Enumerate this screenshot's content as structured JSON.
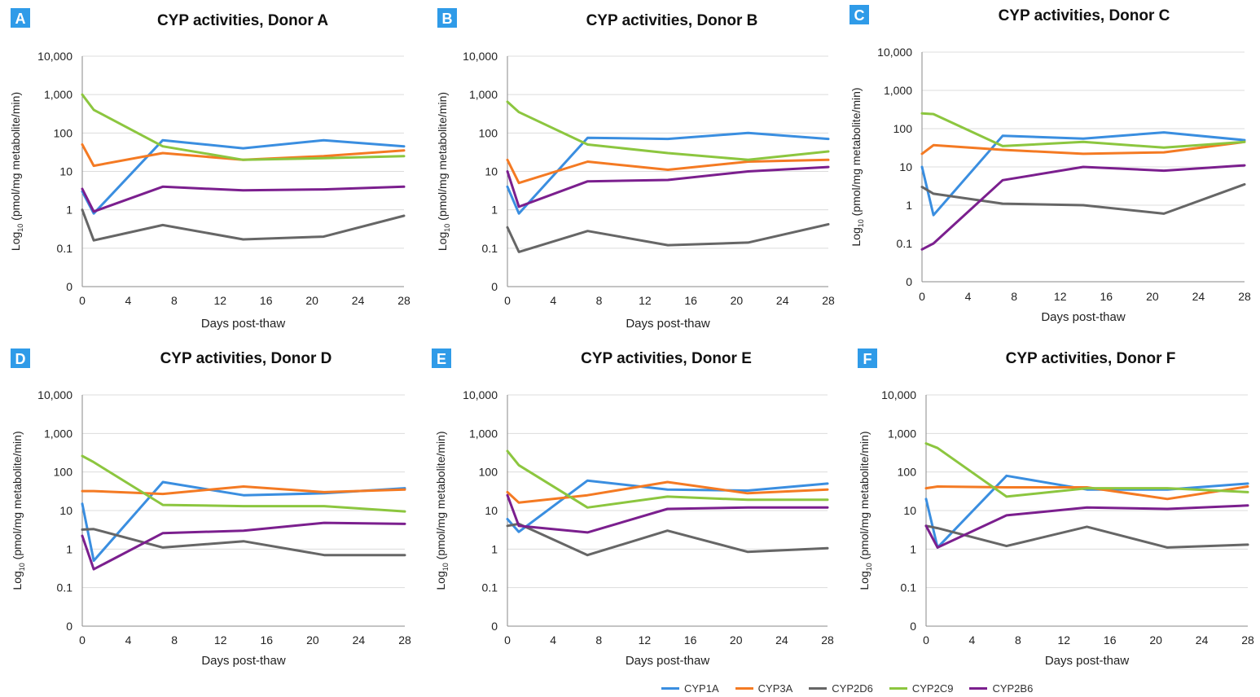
{
  "chart_data": [
    {
      "type": "line",
      "panel": "A",
      "title": "CYP activities, Donor A",
      "xlabel": "Days post-thaw",
      "ylabel": "Log10 (pmol/mg metabolite/min)",
      "log_y": true,
      "ylim": [
        0.01,
        10000
      ],
      "xlim": [
        0,
        28
      ],
      "x_ticks": [
        0,
        4,
        8,
        12,
        16,
        20,
        24,
        28
      ],
      "y_ticks": [
        {
          "v": 0.01,
          "label": "0"
        },
        {
          "v": 0.1,
          "label": "0.1"
        },
        {
          "v": 1,
          "label": "1"
        },
        {
          "v": 10,
          "label": "10"
        },
        {
          "v": 100,
          "label": "100"
        },
        {
          "v": 1000,
          "label": "1,000"
        },
        {
          "v": 10000,
          "label": "10,000"
        }
      ],
      "x": [
        0,
        1,
        7,
        14,
        21,
        28
      ],
      "series": [
        {
          "name": "CYP1A",
          "values": [
            3,
            0.8,
            65,
            40,
            65,
            45
          ]
        },
        {
          "name": "CYP3A",
          "values": [
            50,
            14,
            30,
            20,
            25,
            35
          ]
        },
        {
          "name": "CYP2D6",
          "values": [
            1,
            0.16,
            0.4,
            0.17,
            0.2,
            0.7
          ]
        },
        {
          "name": "CYP2C9",
          "values": [
            1000,
            400,
            45,
            20,
            22,
            25
          ]
        },
        {
          "name": "CYP2B6",
          "values": [
            3.5,
            0.9,
            4,
            3.2,
            3.4,
            4
          ]
        }
      ]
    },
    {
      "type": "line",
      "panel": "B",
      "title": "CYP activities, Donor B",
      "xlabel": "Days post-thaw",
      "ylabel": "Log10 (pmol/mg metabolite/min)",
      "log_y": true,
      "ylim": [
        0.01,
        10000
      ],
      "xlim": [
        0,
        28
      ],
      "x_ticks": [
        0,
        4,
        8,
        12,
        16,
        20,
        24,
        28
      ],
      "y_ticks": [
        {
          "v": 0.01,
          "label": "0"
        },
        {
          "v": 0.1,
          "label": "0.1"
        },
        {
          "v": 1,
          "label": "1"
        },
        {
          "v": 10,
          "label": "10"
        },
        {
          "v": 100,
          "label": "100"
        },
        {
          "v": 1000,
          "label": "1,000"
        },
        {
          "v": 10000,
          "label": "10,000"
        }
      ],
      "x": [
        0,
        1,
        7,
        14,
        21,
        28
      ],
      "series": [
        {
          "name": "CYP1A",
          "values": [
            4,
            0.8,
            75,
            70,
            100,
            70
          ]
        },
        {
          "name": "CYP3A",
          "values": [
            20,
            5,
            18,
            11,
            18,
            20
          ]
        },
        {
          "name": "CYP2D6",
          "values": [
            0.35,
            0.08,
            0.28,
            0.12,
            0.14,
            0.42
          ]
        },
        {
          "name": "CYP2C9",
          "values": [
            650,
            350,
            50,
            30,
            20,
            33
          ]
        },
        {
          "name": "CYP2B6",
          "values": [
            10,
            1.2,
            5.5,
            6,
            10,
            13
          ]
        }
      ]
    },
    {
      "type": "line",
      "panel": "C",
      "title": "CYP activities, Donor C",
      "xlabel": "Days post-thaw",
      "ylabel": "Log10 (pmol/mg metabolite/min)",
      "log_y": true,
      "ylim": [
        0.01,
        10000
      ],
      "xlim": [
        0,
        28
      ],
      "x_ticks": [
        0,
        4,
        8,
        12,
        16,
        20,
        24,
        28
      ],
      "y_ticks": [
        {
          "v": 0.01,
          "label": "0"
        },
        {
          "v": 0.1,
          "label": "0.1"
        },
        {
          "v": 1,
          "label": "1"
        },
        {
          "v": 10,
          "label": "10"
        },
        {
          "v": 100,
          "label": "100"
        },
        {
          "v": 1000,
          "label": "1,000"
        },
        {
          "v": 10000,
          "label": "10,000"
        }
      ],
      "x": [
        0,
        1,
        7,
        14,
        21,
        28
      ],
      "series": [
        {
          "name": "CYP1A",
          "values": [
            10,
            0.55,
            65,
            55,
            80,
            50
          ]
        },
        {
          "name": "CYP3A",
          "values": [
            22,
            37,
            28,
            22,
            24,
            45
          ]
        },
        {
          "name": "CYP2D6",
          "values": [
            3,
            2,
            1.1,
            1,
            0.6,
            3.5
          ]
        },
        {
          "name": "CYP2C9",
          "values": [
            250,
            240,
            35,
            45,
            32,
            45
          ]
        },
        {
          "name": "CYP2B6",
          "values": [
            0.07,
            0.1,
            4.5,
            10,
            8,
            11
          ]
        }
      ]
    },
    {
      "type": "line",
      "panel": "D",
      "title": "CYP activities, Donor D",
      "xlabel": "Days post-thaw",
      "ylabel": "Log10 (pmol/mg metabolite/min)",
      "log_y": true,
      "ylim": [
        0.01,
        10000
      ],
      "xlim": [
        0,
        28
      ],
      "x_ticks": [
        0,
        4,
        8,
        12,
        16,
        20,
        24,
        28
      ],
      "y_ticks": [
        {
          "v": 0.01,
          "label": "0"
        },
        {
          "v": 0.1,
          "label": "0.1"
        },
        {
          "v": 1,
          "label": "1"
        },
        {
          "v": 10,
          "label": "10"
        },
        {
          "v": 100,
          "label": "100"
        },
        {
          "v": 1000,
          "label": "1,000"
        },
        {
          "v": 10000,
          "label": "10,000"
        }
      ],
      "x": [
        0,
        1,
        7,
        14,
        21,
        28
      ],
      "series": [
        {
          "name": "CYP1A",
          "values": [
            15,
            0.5,
            55,
            25,
            28,
            38
          ]
        },
        {
          "name": "CYP3A",
          "values": [
            32,
            32,
            27,
            42,
            30,
            35
          ]
        },
        {
          "name": "CYP2D6",
          "values": [
            3.2,
            3.3,
            1.1,
            1.6,
            0.7,
            0.7
          ]
        },
        {
          "name": "CYP2C9",
          "values": [
            260,
            180,
            14,
            13,
            13,
            9.5
          ]
        },
        {
          "name": "CYP2B6",
          "values": [
            2.2,
            0.3,
            2.6,
            3,
            4.8,
            4.5
          ]
        }
      ]
    },
    {
      "type": "line",
      "panel": "E",
      "title": "CYP activities, Donor E",
      "xlabel": "Days post-thaw",
      "ylabel": "Log10 (pmol/mg metabolite/min)",
      "log_y": true,
      "ylim": [
        0.01,
        10000
      ],
      "xlim": [
        0,
        28
      ],
      "x_ticks": [
        0,
        4,
        8,
        12,
        16,
        20,
        24,
        28
      ],
      "y_ticks": [
        {
          "v": 0.01,
          "label": "0"
        },
        {
          "v": 0.1,
          "label": "0.1"
        },
        {
          "v": 1,
          "label": "1"
        },
        {
          "v": 10,
          "label": "10"
        },
        {
          "v": 100,
          "label": "100"
        },
        {
          "v": 1000,
          "label": "1,000"
        },
        {
          "v": 10000,
          "label": "10,000"
        }
      ],
      "x": [
        0,
        1,
        7,
        14,
        21,
        28
      ],
      "series": [
        {
          "name": "CYP1A",
          "values": [
            6,
            2.8,
            60,
            35,
            33,
            50
          ]
        },
        {
          "name": "CYP3A",
          "values": [
            30,
            16,
            25,
            55,
            28,
            35
          ]
        },
        {
          "name": "CYP2D6",
          "values": [
            4,
            4.5,
            0.7,
            3,
            0.85,
            1.05
          ]
        },
        {
          "name": "CYP2C9",
          "values": [
            350,
            150,
            12,
            23,
            19,
            19
          ]
        },
        {
          "name": "CYP2B6",
          "values": [
            25,
            4,
            2.7,
            11,
            12,
            12
          ]
        }
      ]
    },
    {
      "type": "line",
      "panel": "F",
      "title": "CYP activities, Donor F",
      "xlabel": "Days post-thaw",
      "ylabel": "Log10 (pmol/mg metabolite/min)",
      "log_y": true,
      "ylim": [
        0.01,
        10000
      ],
      "xlim": [
        0,
        28
      ],
      "x_ticks": [
        0,
        4,
        8,
        12,
        16,
        20,
        24,
        28
      ],
      "y_ticks": [
        {
          "v": 0.01,
          "label": "0"
        },
        {
          "v": 0.1,
          "label": "0.1"
        },
        {
          "v": 1,
          "label": "1"
        },
        {
          "v": 10,
          "label": "10"
        },
        {
          "v": 100,
          "label": "100"
        },
        {
          "v": 1000,
          "label": "1,000"
        },
        {
          "v": 10000,
          "label": "10,000"
        }
      ],
      "x": [
        0,
        1,
        7,
        14,
        21,
        28
      ],
      "series": [
        {
          "name": "CYP1A",
          "values": [
            20,
            1.1,
            80,
            35,
            35,
            50
          ]
        },
        {
          "name": "CYP3A",
          "values": [
            38,
            42,
            40,
            40,
            20,
            42
          ]
        },
        {
          "name": "CYP2D6",
          "values": [
            4,
            3.5,
            1.2,
            3.8,
            1.1,
            1.3
          ]
        },
        {
          "name": "CYP2C9",
          "values": [
            550,
            420,
            23,
            38,
            38,
            30
          ]
        },
        {
          "name": "CYP2B6",
          "values": [
            4,
            1.1,
            7.5,
            12,
            11,
            13.5
          ]
        }
      ]
    }
  ],
  "ylabel_prefix": "Log",
  "ylabel_subscript": "10",
  "ylabel_rest": " (pmol/mg metabolite/min)",
  "legend": [
    {
      "name": "CYP1A",
      "color": "#3a8ee0"
    },
    {
      "name": "CYP3A",
      "color": "#f47a23"
    },
    {
      "name": "CYP2D6",
      "color": "#666666"
    },
    {
      "name": "CYP2C9",
      "color": "#8cc63f"
    },
    {
      "name": "CYP2B6",
      "color": "#7b1f8e"
    }
  ],
  "panel_badge_color": "#2f9be8"
}
